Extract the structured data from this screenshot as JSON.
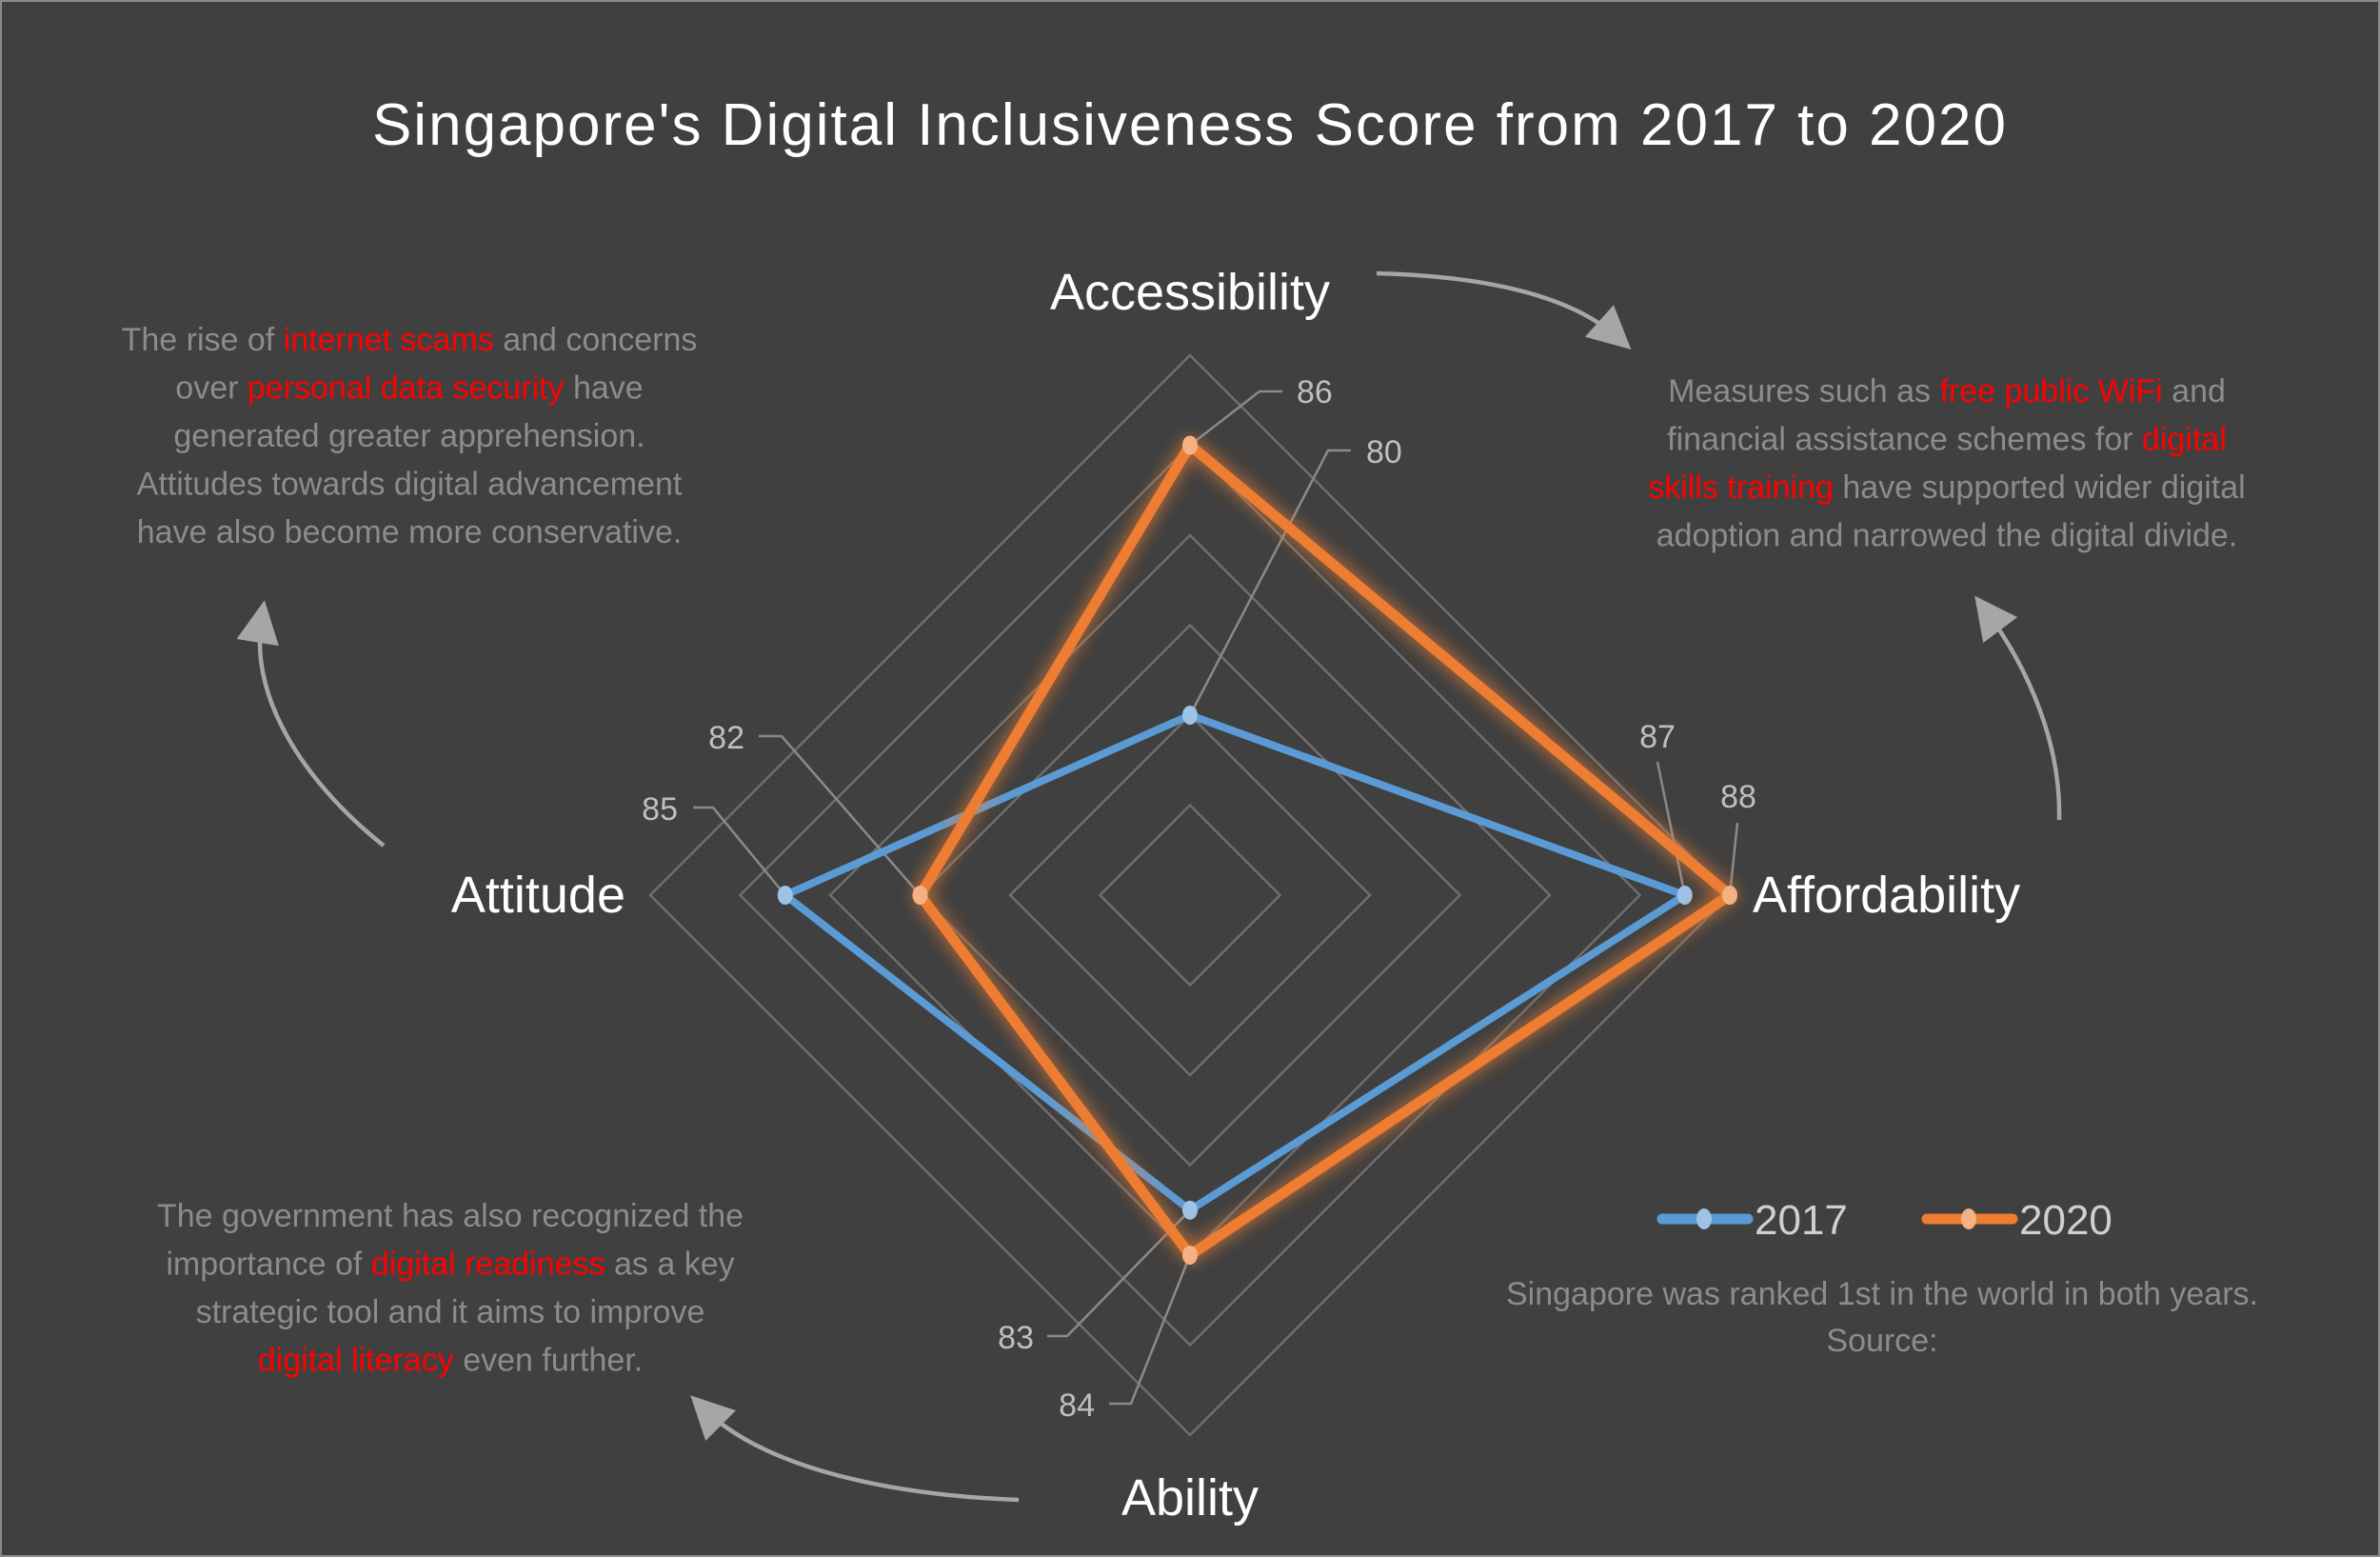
{
  "colors": {
    "background": "#404040",
    "series_2017": "#5b9bd5",
    "series_2020": "#ed7d31",
    "highlight": "#ff0000",
    "note_text": "#8c8c8c"
  },
  "chart_data": {
    "type": "radar",
    "title": "Singapore's Digital Inclusiveness Score from 2017 to 2020",
    "categories": [
      "Accessibility",
      "Affordability",
      "Ability",
      "Attitude"
    ],
    "rlim": [
      76,
      88
    ],
    "r_step": 2,
    "grid": true,
    "legend_placement": "bottom-right",
    "series": [
      {
        "name": "2017",
        "values": [
          80,
          87,
          83,
          85
        ],
        "color": "#5b9bd5"
      },
      {
        "name": "2020",
        "values": [
          86,
          88,
          84,
          82
        ],
        "color": "#ed7d31"
      }
    ]
  },
  "annotations": {
    "top_left": [
      [
        {
          "t": "The rise of "
        },
        {
          "t": "internet scams",
          "h": true
        },
        {
          "t": " and concerns"
        }
      ],
      [
        {
          "t": "over "
        },
        {
          "t": "personal data security",
          "h": true
        },
        {
          "t": " have"
        }
      ],
      [
        {
          "t": "generated greater apprehension."
        }
      ],
      [
        {
          "t": "Attitudes towards digital advancement"
        }
      ],
      [
        {
          "t": "have also become more conservative."
        }
      ]
    ],
    "top_right": [
      [
        {
          "t": "Measures such as "
        },
        {
          "t": "free public WiFi",
          "h": true
        },
        {
          "t": " and"
        }
      ],
      [
        {
          "t": "financial assistance schemes for "
        },
        {
          "t": "digital",
          "h": true
        }
      ],
      [
        {
          "t": "skills training",
          "h": true
        },
        {
          "t": " have supported wider digital"
        }
      ],
      [
        {
          "t": "adoption and narrowed the digital divide."
        }
      ]
    ],
    "bottom_left": [
      [
        {
          "t": "The government has also recognized the"
        }
      ],
      [
        {
          "t": "importance of "
        },
        {
          "t": "digital readiness",
          "h": true
        },
        {
          "t": " as a key"
        }
      ],
      [
        {
          "t": "strategic tool and it aims to improve"
        }
      ],
      [
        {
          "t": "digital literacy",
          "h": true
        },
        {
          "t": " even further."
        }
      ]
    ]
  },
  "footnote": {
    "line1": "Singapore was ranked 1st in the world in both years.",
    "line2": "Source:"
  }
}
